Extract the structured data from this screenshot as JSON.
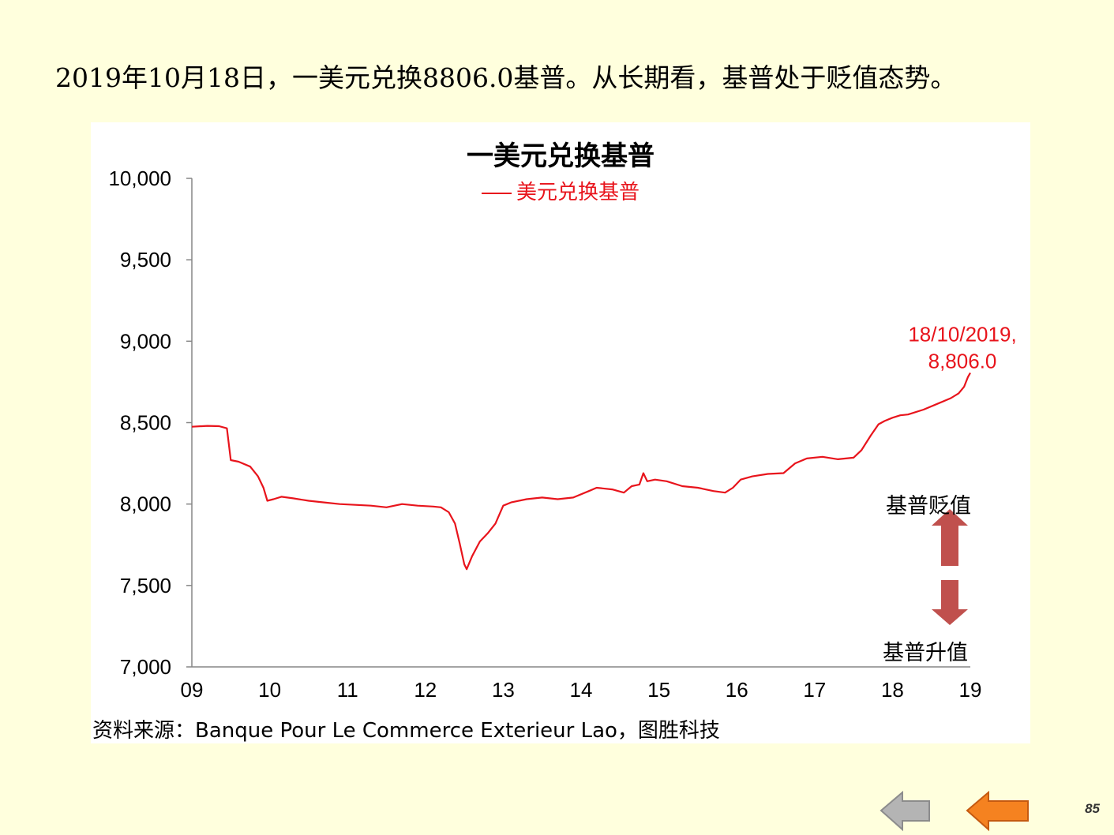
{
  "slide": {
    "headline": "2019年10月18日，一美元兑换8806.0基普。从长期看，基普处于贬值态势。",
    "source": "资料来源：Banque Pour Le Commerce Exterieur Lao，图胜科技",
    "page_number": "85"
  },
  "annotations": {
    "depreciation_label": "基普贬值",
    "appreciation_label": "基普升值",
    "up_arrow_color": "#C0504D",
    "down_arrow_color": "#C0504D"
  },
  "navigation": {
    "back_icon": "gray-left-arrow-icon",
    "prev_icon": "orange-left-arrow-icon",
    "back_color": "#B4B4B4",
    "prev_color": "#F58220"
  },
  "chart_data": {
    "type": "line",
    "title": "一美元兑换基普",
    "xlabel": "",
    "ylabel": "",
    "ylim": [
      7000,
      10000
    ],
    "yticks": [
      7000,
      7500,
      8000,
      8500,
      9000,
      9500,
      10000
    ],
    "ytick_labels": [
      "7,000",
      "7,500",
      "8,000",
      "8,500",
      "9,000",
      "9,500",
      "10,000"
    ],
    "xlim": [
      2009,
      2019
    ],
    "xticks": [
      2009,
      2010,
      2011,
      2012,
      2013,
      2014,
      2015,
      2016,
      2017,
      2018,
      2019
    ],
    "xtick_labels": [
      "09",
      "10",
      "11",
      "12",
      "13",
      "14",
      "15",
      "16",
      "17",
      "18",
      "19"
    ],
    "grid": false,
    "legend_position": "top-center",
    "line_color": "#E8141C",
    "series": [
      {
        "name": "美元兑换基普",
        "x": [
          2009.0,
          2009.2,
          2009.35,
          2009.45,
          2009.5,
          2009.6,
          2009.75,
          2009.85,
          2009.92,
          2009.97,
          2010.05,
          2010.15,
          2010.3,
          2010.5,
          2010.7,
          2010.9,
          2011.1,
          2011.3,
          2011.5,
          2011.7,
          2011.9,
          2012.1,
          2012.2,
          2012.3,
          2012.38,
          2012.44,
          2012.5,
          2012.53,
          2012.6,
          2012.7,
          2012.8,
          2012.9,
          2013.0,
          2013.1,
          2013.3,
          2013.5,
          2013.7,
          2013.9,
          2014.1,
          2014.2,
          2014.4,
          2014.55,
          2014.65,
          2014.75,
          2014.8,
          2014.85,
          2014.95,
          2015.1,
          2015.3,
          2015.5,
          2015.7,
          2015.85,
          2015.95,
          2016.05,
          2016.2,
          2016.4,
          2016.6,
          2016.75,
          2016.9,
          2017.1,
          2017.3,
          2017.5,
          2017.6,
          2017.72,
          2017.82,
          2017.9,
          2018.0,
          2018.1,
          2018.2,
          2018.4,
          2018.6,
          2018.75,
          2018.85,
          2018.92,
          2018.97,
          2019.0
        ],
        "values": [
          8475,
          8480,
          8478,
          8465,
          8270,
          8260,
          8230,
          8170,
          8100,
          8020,
          8030,
          8045,
          8035,
          8020,
          8010,
          8000,
          7995,
          7990,
          7980,
          8000,
          7990,
          7985,
          7980,
          7950,
          7880,
          7760,
          7630,
          7600,
          7680,
          7770,
          7820,
          7880,
          7990,
          8010,
          8030,
          8040,
          8030,
          8040,
          8080,
          8100,
          8090,
          8070,
          8110,
          8120,
          8190,
          8140,
          8150,
          8140,
          8110,
          8100,
          8080,
          8070,
          8100,
          8150,
          8170,
          8185,
          8190,
          8250,
          8280,
          8290,
          8275,
          8285,
          8330,
          8420,
          8490,
          8510,
          8530,
          8545,
          8550,
          8580,
          8620,
          8650,
          8680,
          8720,
          8780,
          8806
        ]
      }
    ],
    "annotations": [
      {
        "text_line1": "18/10/2019,",
        "text_line2": "8,806.0",
        "x": 2019.0,
        "y": 8806
      }
    ]
  }
}
